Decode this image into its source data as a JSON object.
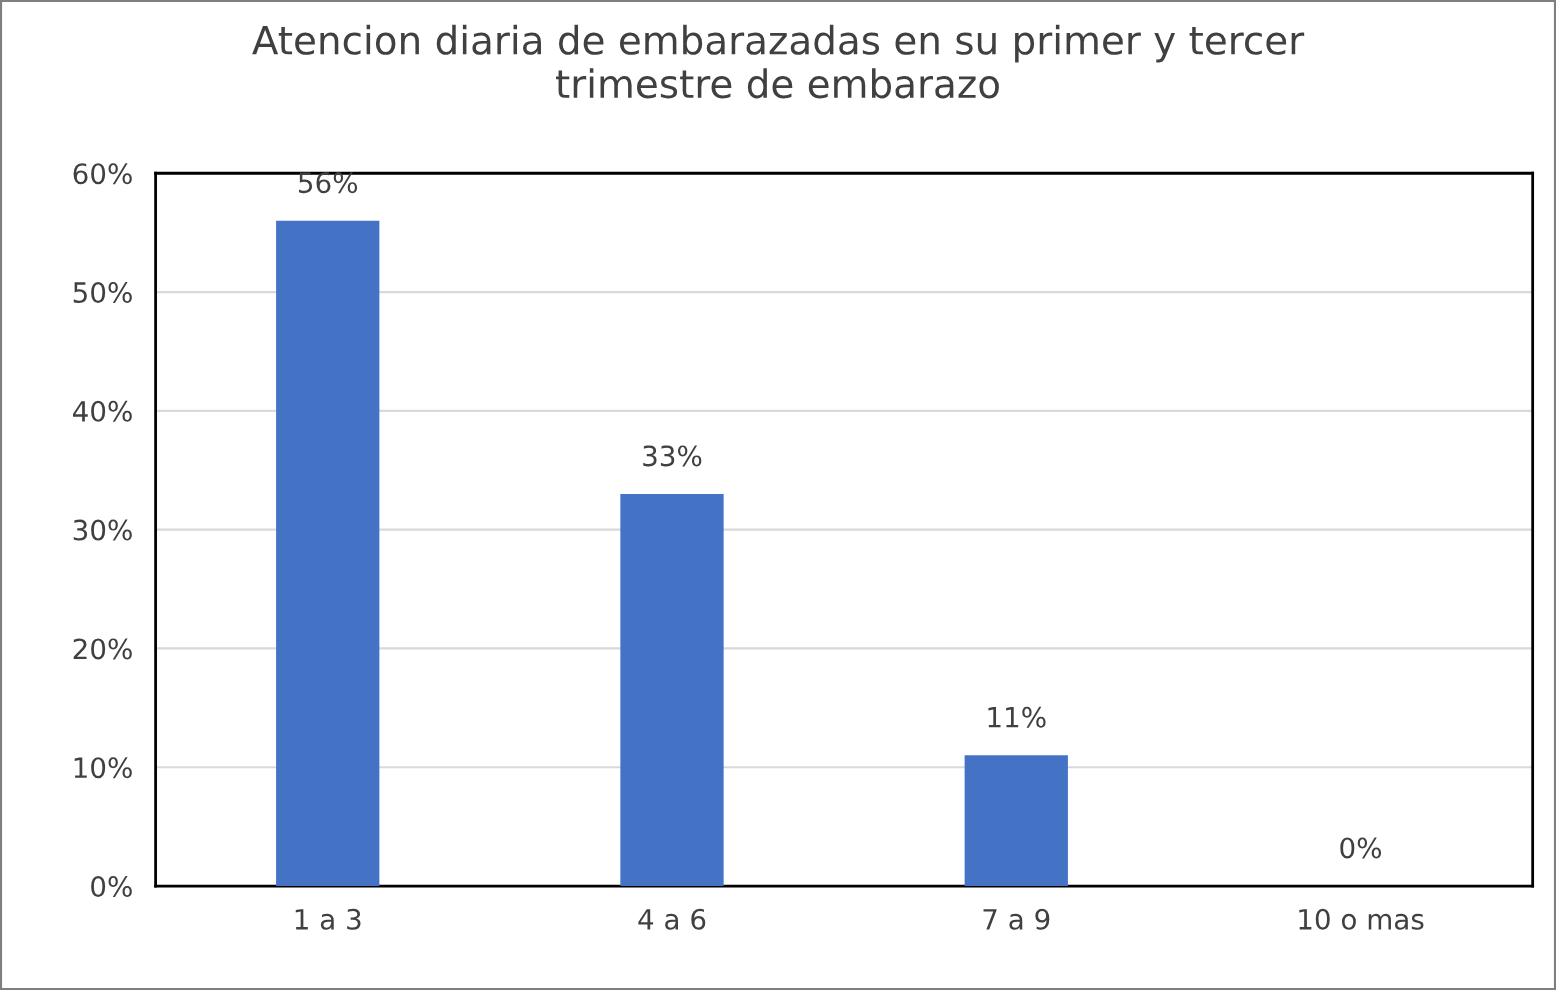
{
  "chart_data": {
    "type": "bar",
    "title": "Atencion diaria de embarazadas en su primer y tercer\ntrimestre de embarazo",
    "categories": [
      "1 a 3",
      "4 a 6",
      "7 a 9",
      "10 o mas"
    ],
    "values": [
      56,
      33,
      11,
      0
    ],
    "value_labels": [
      "56%",
      "33%",
      "11%",
      "0%"
    ],
    "color": "#4472c4",
    "ylim": [
      0,
      60
    ],
    "yticks": [
      {
        "value": 0,
        "label": "0%"
      },
      {
        "value": 10,
        "label": "10%"
      },
      {
        "value": 20,
        "label": "20%"
      },
      {
        "value": 30,
        "label": "30%"
      },
      {
        "value": 40,
        "label": "40%"
      },
      {
        "value": 50,
        "label": "50%"
      },
      {
        "value": 60,
        "label": "60%"
      }
    ],
    "grid": "y",
    "legend": false
  }
}
